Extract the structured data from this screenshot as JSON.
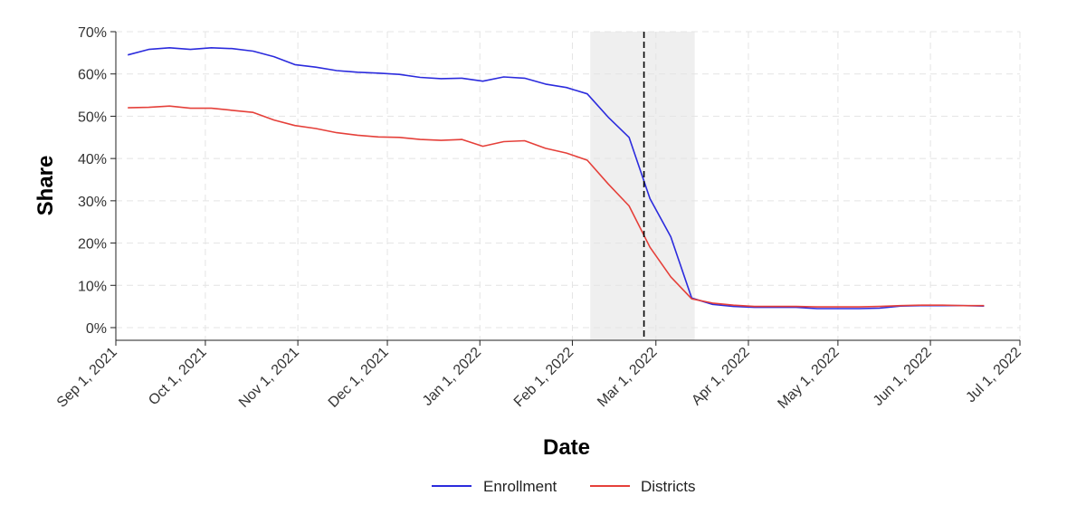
{
  "chart_data": {
    "type": "line",
    "title": "",
    "xlabel": "Date",
    "ylabel": "Share",
    "ylim": [
      0,
      70
    ],
    "xlim": [
      "2021-09-01",
      "2022-07-01"
    ],
    "grid": true,
    "legend_position": "bottom",
    "x_ticks": [
      "Sep 1, 2021",
      "Oct 1, 2021",
      "Nov 1, 2021",
      "Dec 1, 2021",
      "Jan 1, 2022",
      "Feb 1, 2022",
      "Mar 1, 2022",
      "Apr 1, 2022",
      "May 1, 2022",
      "Jun 1, 2022",
      "Jul 1, 2022"
    ],
    "y_ticks": [
      "0%",
      "10%",
      "20%",
      "30%",
      "40%",
      "50%",
      "60%",
      "70%"
    ],
    "shaded_region": {
      "start": "2022-02-07",
      "end": "2022-03-14",
      "color": "#efefef"
    },
    "vertical_line": {
      "date": "2022-02-25",
      "style": "dashed",
      "color": "#000000"
    },
    "series": [
      {
        "name": "Enrollment",
        "color": "#2b2bdd",
        "x": [
          "2021-09-05",
          "2021-09-12",
          "2021-09-19",
          "2021-09-26",
          "2021-10-03",
          "2021-10-10",
          "2021-10-17",
          "2021-10-24",
          "2021-10-31",
          "2021-11-07",
          "2021-11-14",
          "2021-11-21",
          "2021-11-28",
          "2021-12-05",
          "2021-12-12",
          "2021-12-19",
          "2021-12-26",
          "2022-01-02",
          "2022-01-09",
          "2022-01-16",
          "2022-01-23",
          "2022-01-30",
          "2022-02-06",
          "2022-02-13",
          "2022-02-20",
          "2022-02-27",
          "2022-03-06",
          "2022-03-13",
          "2022-03-20",
          "2022-03-27",
          "2022-04-03",
          "2022-04-10",
          "2022-04-17",
          "2022-04-24",
          "2022-05-01",
          "2022-05-08",
          "2022-05-15",
          "2022-05-22",
          "2022-05-29",
          "2022-06-05",
          "2022-06-12",
          "2022-06-19"
        ],
        "values": [
          64.5,
          65.8,
          66.2,
          65.8,
          66.2,
          66.0,
          65.4,
          64.1,
          62.2,
          61.6,
          60.8,
          60.4,
          60.2,
          59.9,
          59.2,
          58.9,
          59.0,
          58.3,
          59.3,
          59.0,
          57.6,
          56.8,
          55.3,
          49.8,
          45.0,
          30.5,
          21.5,
          7.0,
          5.5,
          5.0,
          4.8,
          4.8,
          4.8,
          4.5,
          4.5,
          4.5,
          4.6,
          5.1,
          5.2,
          5.2,
          5.2,
          5.1
        ]
      },
      {
        "name": "Districts",
        "color": "#e5403a",
        "x": [
          "2021-09-05",
          "2021-09-12",
          "2021-09-19",
          "2021-09-26",
          "2021-10-03",
          "2021-10-10",
          "2021-10-17",
          "2021-10-24",
          "2021-10-31",
          "2021-11-07",
          "2021-11-14",
          "2021-11-21",
          "2021-11-28",
          "2021-12-05",
          "2021-12-12",
          "2021-12-19",
          "2021-12-26",
          "2022-01-02",
          "2022-01-09",
          "2022-01-16",
          "2022-01-23",
          "2022-01-30",
          "2022-02-06",
          "2022-02-13",
          "2022-02-20",
          "2022-02-27",
          "2022-03-06",
          "2022-03-13",
          "2022-03-20",
          "2022-03-27",
          "2022-04-03",
          "2022-04-10",
          "2022-04-17",
          "2022-04-24",
          "2022-05-01",
          "2022-05-08",
          "2022-05-15",
          "2022-05-22",
          "2022-05-29",
          "2022-06-05",
          "2022-06-12",
          "2022-06-19"
        ],
        "values": [
          52.0,
          52.1,
          52.4,
          51.9,
          51.9,
          51.4,
          50.9,
          49.1,
          47.8,
          47.1,
          46.1,
          45.5,
          45.1,
          45.0,
          44.5,
          44.3,
          44.5,
          42.9,
          44.0,
          44.2,
          42.4,
          41.3,
          39.6,
          34.0,
          28.8,
          19.0,
          12.0,
          6.8,
          5.8,
          5.3,
          5.0,
          5.0,
          5.0,
          4.9,
          4.9,
          4.9,
          5.0,
          5.2,
          5.3,
          5.3,
          5.2,
          5.2
        ]
      }
    ]
  }
}
